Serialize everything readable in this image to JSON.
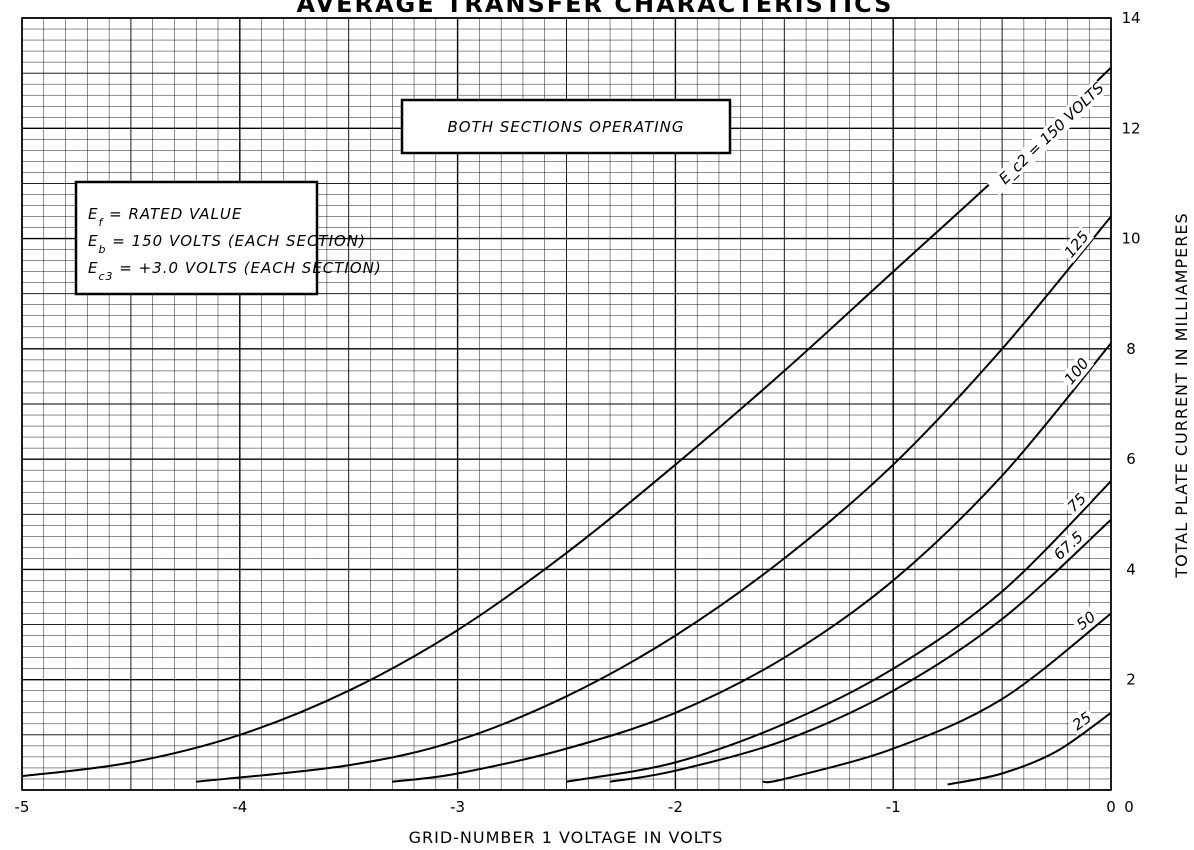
{
  "chart_data": {
    "type": "line",
    "title": "AVERAGE TRANSFER CHARACTERISTICS",
    "xlabel": "GRID-NUMBER 1 VOLTAGE IN VOLTS",
    "ylabel": "TOTAL PLATE CURRENT IN MILLIAMPERES",
    "xlim": [
      -5,
      0
    ],
    "ylim": [
      0,
      14
    ],
    "x_ticks": [
      "-5",
      "-4",
      "-3",
      "-2",
      "-1",
      "0"
    ],
    "y_ticks": [
      "2",
      "4",
      "6",
      "8",
      "10",
      "12",
      "14"
    ],
    "grid": true,
    "annotations": {
      "operating": "BOTH SECTIONS OPERATING",
      "conditions": [
        "E_f = RATED VALUE",
        "E_b = 150 VOLTS (EACH SECTION)",
        "E_c3 = +3.0 VOLTS (EACH SECTION)"
      ]
    },
    "series": [
      {
        "name": "E_c2 = 150 VOLTS",
        "x": [
          -5.0,
          -4.5,
          -4.0,
          -3.5,
          -3.0,
          -2.5,
          -2.0,
          -1.5,
          -1.0,
          -0.5,
          0.0
        ],
        "y": [
          0.25,
          0.5,
          1.0,
          1.8,
          2.9,
          4.3,
          5.9,
          7.6,
          9.4,
          11.2,
          13.1
        ]
      },
      {
        "name": "125",
        "x": [
          -4.2,
          -3.5,
          -3.0,
          -2.5,
          -2.0,
          -1.5,
          -1.0,
          -0.5,
          0.0
        ],
        "y": [
          0.15,
          0.45,
          0.9,
          1.7,
          2.8,
          4.2,
          5.9,
          8.0,
          10.4
        ]
      },
      {
        "name": "100",
        "x": [
          -3.3,
          -3.0,
          -2.5,
          -2.0,
          -1.5,
          -1.0,
          -0.5,
          0.0
        ],
        "y": [
          0.15,
          0.3,
          0.75,
          1.4,
          2.4,
          3.8,
          5.7,
          8.1
        ]
      },
      {
        "name": "75",
        "x": [
          -2.5,
          -2.0,
          -1.5,
          -1.0,
          -0.5,
          0.0
        ],
        "y": [
          0.15,
          0.5,
          1.2,
          2.2,
          3.6,
          5.6
        ]
      },
      {
        "name": "67.5",
        "x": [
          -2.3,
          -2.0,
          -1.5,
          -1.0,
          -0.5,
          0.0
        ],
        "y": [
          0.15,
          0.35,
          0.9,
          1.8,
          3.1,
          4.9
        ]
      },
      {
        "name": "50",
        "x": [
          -1.6,
          -1.5,
          -1.0,
          -0.5,
          0.0
        ],
        "y": [
          0.15,
          0.2,
          0.75,
          1.65,
          3.2
        ]
      },
      {
        "name": "25",
        "x": [
          -0.75,
          -0.5,
          -0.25,
          0.0
        ],
        "y": [
          0.1,
          0.3,
          0.7,
          1.4
        ]
      }
    ]
  }
}
